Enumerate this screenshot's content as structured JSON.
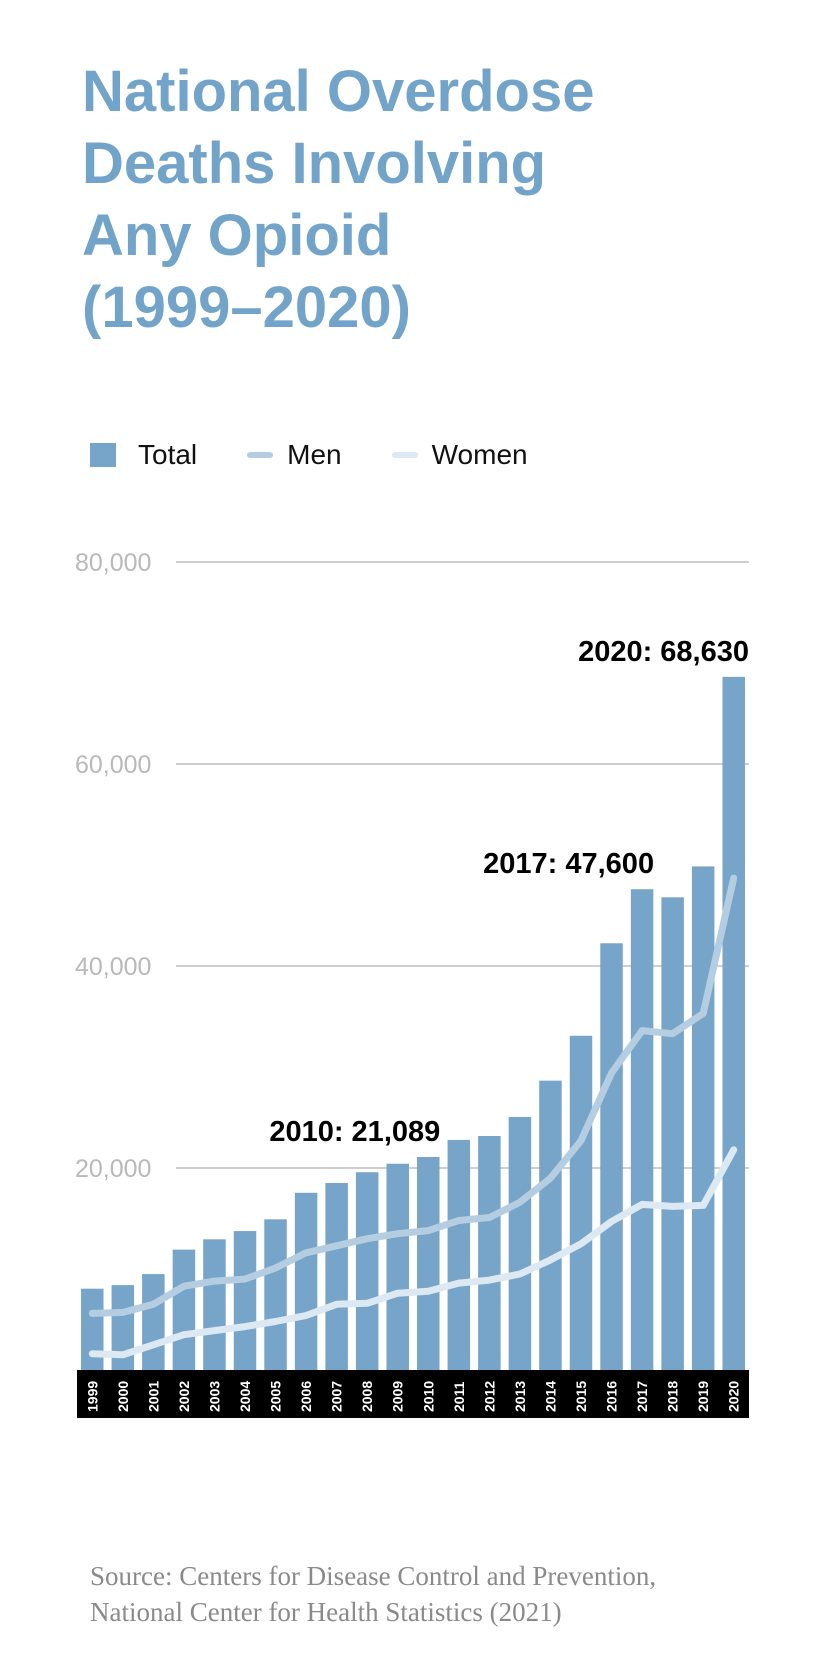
{
  "title_lines": [
    "National Overdose",
    "Deaths Involving",
    "Any Opioid",
    "(1999–2020)"
  ],
  "legend": [
    {
      "label": "Total",
      "kind": "bar",
      "color": "#76a5c9"
    },
    {
      "label": "Men",
      "kind": "line",
      "color": "#b4cde1"
    },
    {
      "label": "Women",
      "kind": "line",
      "color": "#dce8f2"
    }
  ],
  "chart_data": {
    "type": "bar",
    "categories": [
      "1999",
      "2000",
      "2001",
      "2002",
      "2003",
      "2004",
      "2005",
      "2006",
      "2007",
      "2008",
      "2009",
      "2010",
      "2011",
      "2012",
      "2013",
      "2014",
      "2015",
      "2016",
      "2017",
      "2018",
      "2019",
      "2020"
    ],
    "series": [
      {
        "name": "Total",
        "type": "bar",
        "color": "#76a5c9",
        "values": [
          8050,
          8407,
          9496,
          11920,
          12940,
          13756,
          14918,
          17545,
          18516,
          19582,
          20422,
          21089,
          22784,
          23166,
          25052,
          28647,
          33091,
          42249,
          47600,
          46802,
          49860,
          68630
        ]
      },
      {
        "name": "Men",
        "type": "line",
        "color": "#b4cde1",
        "values": [
          5600,
          5700,
          6500,
          8300,
          8800,
          9000,
          10100,
          11600,
          12300,
          13000,
          13500,
          13800,
          14800,
          15100,
          16600,
          19000,
          22700,
          29400,
          33600,
          33300,
          35300,
          48700
        ]
      },
      {
        "name": "Women",
        "type": "line",
        "color": "#dce8f2",
        "values": [
          1600,
          1500,
          2500,
          3500,
          3900,
          4300,
          4800,
          5400,
          6500,
          6600,
          7600,
          7800,
          8600,
          8900,
          9500,
          10900,
          12500,
          14700,
          16400,
          16200,
          16300,
          21800
        ]
      }
    ],
    "ylim": [
      0,
      80000
    ],
    "yticks": [
      20000,
      40000,
      60000,
      80000
    ],
    "ytick_labels": [
      "20,000",
      "40,000",
      "60,000",
      "80,000"
    ],
    "grid": true,
    "annotations": [
      {
        "category": "2010",
        "text": "2010: 21,089"
      },
      {
        "category": "2017",
        "text": "2017: 47,600"
      },
      {
        "category": "2020",
        "text": "2020: 68,630"
      }
    ]
  },
  "source_lines": [
    "Source: Centers for Disease Control and Prevention,",
    "National Center for Health Statistics (2021)"
  ]
}
